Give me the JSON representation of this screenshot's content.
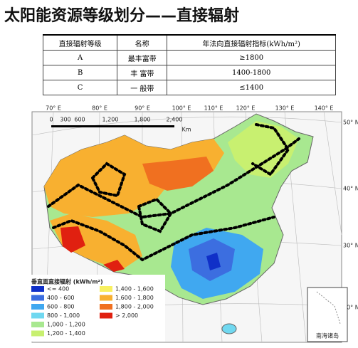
{
  "header": {
    "title": "太阳能资源等级划分——直接辐射"
  },
  "table": {
    "columns": [
      "直接辐射等级",
      "名称",
      "年法向直接辐射指标(kWh/m²)"
    ],
    "rows": [
      [
        "A",
        "最丰富带",
        "≥1800"
      ],
      [
        "B",
        "丰  富带",
        "1400-1800"
      ],
      [
        "C",
        "一  般带",
        "≤1400"
      ]
    ]
  },
  "map": {
    "longitudes": [
      "70° E",
      "80° E",
      "90° E",
      "100° E",
      "110° E",
      "120° E",
      "130° E",
      "140° E"
    ],
    "latitudes": [
      "50° N",
      "40° N",
      "30° N",
      "20° N"
    ],
    "scale": [
      "0",
      "300",
      "600",
      "1,200",
      "1,800",
      "2,400",
      "Km"
    ],
    "legend_title": "垂直面直接辐射 (kWh/m²)",
    "legend": [
      {
        "label": "<= 400",
        "color": "#1030c8"
      },
      {
        "label": "400 - 600",
        "color": "#3c6ee0"
      },
      {
        "label": "600 - 800",
        "color": "#40a8f0"
      },
      {
        "label": "800 - 1,000",
        "color": "#70d8f0"
      },
      {
        "label": "1,000 - 1,200",
        "color": "#a8e890"
      },
      {
        "label": "1,200 - 1,400",
        "color": "#c8f070"
      },
      {
        "label": "1,400 - 1,600",
        "color": "#f8f060"
      },
      {
        "label": "1,600 - 1,800",
        "color": "#f8b030"
      },
      {
        "label": "1,800 - 2,000",
        "color": "#f07020"
      },
      {
        "label": "> 2,000",
        "color": "#e02010"
      }
    ],
    "inset_label": "南海诸岛"
  }
}
